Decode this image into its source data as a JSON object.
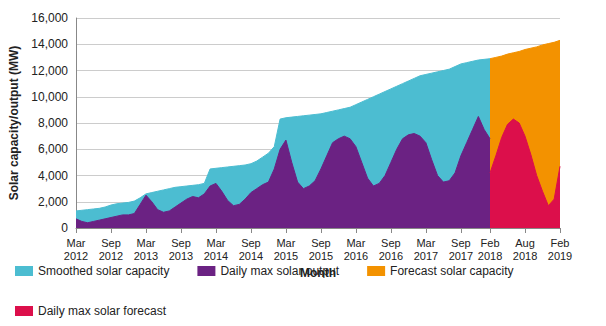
{
  "chart_data": {
    "type": "area",
    "x_label": "Month",
    "y_label": "Solar capacity/output (MW)",
    "categories": [
      "Mar 2012",
      null,
      null,
      null,
      null,
      null,
      "Sep 2012",
      null,
      null,
      null,
      null,
      null,
      "Mar 2013",
      null,
      null,
      null,
      null,
      null,
      "Sep 2013",
      null,
      null,
      null,
      null,
      null,
      "Mar 2014",
      null,
      null,
      null,
      null,
      null,
      "Sep 2014",
      null,
      null,
      null,
      null,
      null,
      "Mar 2015",
      null,
      null,
      null,
      null,
      null,
      "Sep 2015",
      null,
      null,
      null,
      null,
      null,
      "Mar 2016",
      null,
      null,
      null,
      null,
      null,
      "Sep 2016",
      null,
      null,
      null,
      null,
      null,
      "Mar 2017",
      null,
      null,
      null,
      null,
      null,
      "Sep 2017",
      null,
      null,
      null,
      null,
      "Feb 2018",
      null,
      null,
      null,
      null,
      null,
      "Aug 2018",
      null,
      null,
      null,
      null,
      null,
      "Feb 2019"
    ],
    "series": [
      {
        "name": "Smoothed solar capacity",
        "color": "#4cbdd1",
        "values": [
          1300,
          1350,
          1400,
          1450,
          1500,
          1600,
          1750,
          1850,
          1900,
          1950,
          2050,
          2300,
          2600,
          2700,
          2800,
          2900,
          3000,
          3100,
          3150,
          3200,
          3250,
          3300,
          3400,
          4500,
          4550,
          4600,
          4650,
          4700,
          4750,
          4800,
          4900,
          5100,
          5400,
          5700,
          6200,
          8300,
          8400,
          8450,
          8500,
          8550,
          8600,
          8650,
          8700,
          8800,
          8900,
          9000,
          9100,
          9200,
          9400,
          9600,
          9800,
          10000,
          10200,
          10400,
          10600,
          10800,
          11000,
          11200,
          11400,
          11600,
          11700,
          11800,
          11900,
          12000,
          12100,
          12300,
          12500,
          12600,
          12700,
          12800,
          12850,
          12900,
          null,
          null,
          null,
          null,
          null,
          null,
          null,
          null,
          null,
          null,
          null,
          null
        ]
      },
      {
        "name": "Daily max solar output",
        "color": "#6b2283",
        "values": [
          700,
          500,
          400,
          500,
          600,
          700,
          800,
          900,
          1000,
          1000,
          1100,
          1800,
          2500,
          2000,
          1400,
          1200,
          1300,
          1600,
          1900,
          2200,
          2400,
          2300,
          2600,
          3200,
          3400,
          2800,
          2100,
          1700,
          1800,
          2200,
          2700,
          3000,
          3300,
          3500,
          4500,
          6000,
          6700,
          5000,
          3500,
          3000,
          3200,
          3600,
          4500,
          5500,
          6500,
          6800,
          7000,
          6800,
          6200,
          5000,
          3800,
          3200,
          3400,
          4000,
          5000,
          6000,
          6800,
          7100,
          7200,
          7000,
          6500,
          5200,
          4000,
          3500,
          3600,
          4200,
          5500,
          6500,
          7500,
          8500,
          7500,
          6800,
          null,
          null,
          null,
          null,
          null,
          null,
          null,
          null,
          null,
          null,
          null,
          null
        ]
      },
      {
        "name": "Forecast solar capacity",
        "color": "#f39200",
        "values": [
          null,
          null,
          null,
          null,
          null,
          null,
          null,
          null,
          null,
          null,
          null,
          null,
          null,
          null,
          null,
          null,
          null,
          null,
          null,
          null,
          null,
          null,
          null,
          null,
          null,
          null,
          null,
          null,
          null,
          null,
          null,
          null,
          null,
          null,
          null,
          null,
          null,
          null,
          null,
          null,
          null,
          null,
          null,
          null,
          null,
          null,
          null,
          null,
          null,
          null,
          null,
          null,
          null,
          null,
          null,
          null,
          null,
          null,
          null,
          null,
          null,
          null,
          null,
          null,
          null,
          null,
          null,
          null,
          null,
          null,
          null,
          12900,
          13000,
          13100,
          13250,
          13350,
          13450,
          13600,
          13700,
          13800,
          13950,
          14050,
          14150,
          14300
        ]
      },
      {
        "name": "Daily max solar forecast",
        "color": "#dc0f4b",
        "values": [
          null,
          null,
          null,
          null,
          null,
          null,
          null,
          null,
          null,
          null,
          null,
          null,
          null,
          null,
          null,
          null,
          null,
          null,
          null,
          null,
          null,
          null,
          null,
          null,
          null,
          null,
          null,
          null,
          null,
          null,
          null,
          null,
          null,
          null,
          null,
          null,
          null,
          null,
          null,
          null,
          null,
          null,
          null,
          null,
          null,
          null,
          null,
          null,
          null,
          null,
          null,
          null,
          null,
          null,
          null,
          null,
          null,
          null,
          null,
          null,
          null,
          null,
          null,
          null,
          null,
          null,
          null,
          null,
          null,
          null,
          null,
          4200,
          5500,
          6900,
          7900,
          8300,
          8000,
          7000,
          5600,
          4000,
          2800,
          1700,
          2200,
          4700
        ]
      }
    ],
    "ylim": [
      0,
      16000
    ],
    "yticks": [
      0,
      {
        "value": 2000,
        "label": "2,000"
      },
      {
        "value": 4000,
        "label": "4,000"
      },
      {
        "value": 6000,
        "label": "6,000"
      },
      {
        "value": 8000,
        "label": "8,000"
      },
      {
        "value": 10000,
        "label": "10,000"
      },
      {
        "value": 12000,
        "label": "12,000"
      },
      {
        "value": 14000,
        "label": "14,000"
      },
      {
        "value": 16000,
        "label": "16,000"
      }
    ],
    "grid": true,
    "legend": "bottom"
  }
}
